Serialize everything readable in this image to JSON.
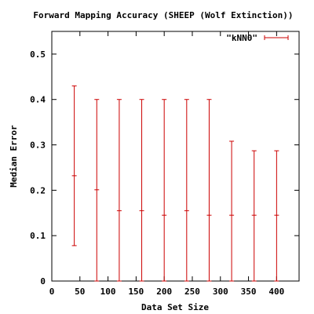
{
  "chart_data": {
    "type": "errorbar",
    "title": "Forward Mapping Accuracy (SHEEP (Wolf Extinction))",
    "xlabel": "Data Set Size",
    "ylabel": "Median Error",
    "xlim": [
      0,
      440
    ],
    "ylim": [
      0,
      0.55
    ],
    "xticks": [
      0,
      50,
      100,
      150,
      200,
      250,
      300,
      350,
      400
    ],
    "xtick_labels": [
      "0",
      "50",
      "100",
      "150",
      "200",
      "250",
      "300",
      "350",
      "400"
    ],
    "yticks": [
      0,
      0.1,
      0.2,
      0.3,
      0.4,
      0.5
    ],
    "ytick_labels": [
      "0",
      "0.1",
      "0.2",
      "0.3",
      "0.4",
      "0.5"
    ],
    "legend_position": "top-right",
    "grid": false,
    "series": [
      {
        "name": "\"kNN0\"",
        "color": "#cc0000",
        "points": [
          {
            "x": 40,
            "y": 0.232,
            "low": 0.078,
            "high": 0.43
          },
          {
            "x": 80,
            "y": 0.201,
            "low": 0.0,
            "high": 0.4
          },
          {
            "x": 120,
            "y": 0.155,
            "low": 0.0,
            "high": 0.4
          },
          {
            "x": 160,
            "y": 0.155,
            "low": 0.0,
            "high": 0.4
          },
          {
            "x": 200,
            "y": 0.145,
            "low": 0.0,
            "high": 0.4
          },
          {
            "x": 240,
            "y": 0.155,
            "low": 0.0,
            "high": 0.4
          },
          {
            "x": 280,
            "y": 0.145,
            "low": 0.0,
            "high": 0.4
          },
          {
            "x": 320,
            "y": 0.145,
            "low": 0.0,
            "high": 0.308
          },
          {
            "x": 360,
            "y": 0.145,
            "low": 0.0,
            "high": 0.287
          },
          {
            "x": 400,
            "y": 0.145,
            "low": 0.0,
            "high": 0.287
          }
        ]
      }
    ]
  }
}
